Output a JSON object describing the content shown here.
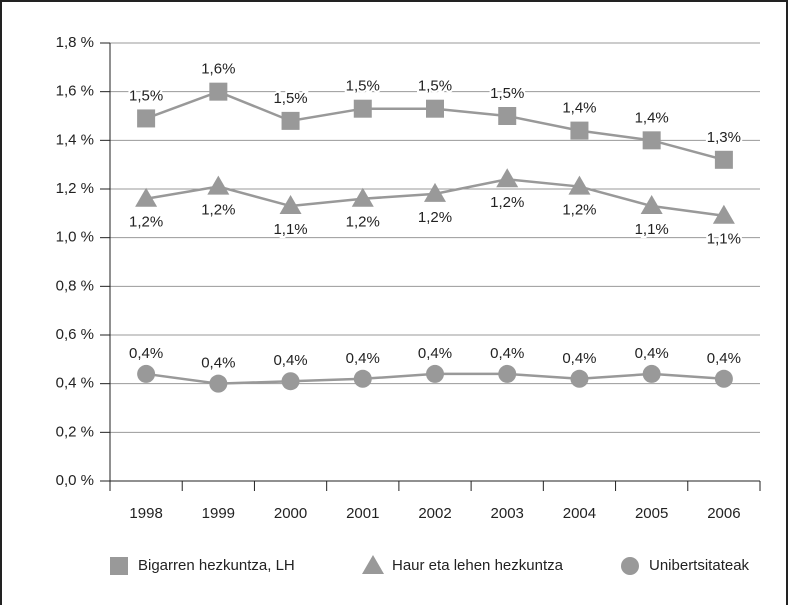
{
  "chart_data": {
    "type": "line",
    "categories": [
      "1998",
      "1999",
      "2000",
      "2001",
      "2002",
      "2003",
      "2004",
      "2005",
      "2006"
    ],
    "ylim": [
      0,
      1.8
    ],
    "yticks": [
      {
        "value": 0,
        "label": "0,0 %"
      },
      {
        "value": 0.2,
        "label": "0,2 %"
      },
      {
        "value": 0.4,
        "label": "0,4 %"
      },
      {
        "value": 0.6,
        "label": "0,6 %"
      },
      {
        "value": 0.8,
        "label": "0,8 %"
      },
      {
        "value": 1.0,
        "label": "1,0 %"
      },
      {
        "value": 1.2,
        "label": "1,2 %"
      },
      {
        "value": 1.4,
        "label": "1,4 %"
      },
      {
        "value": 1.6,
        "label": "1,6 %"
      },
      {
        "value": 1.8,
        "label": "1,8 %"
      }
    ],
    "grid": true,
    "legend": "bottom",
    "series": [
      {
        "name": "Bigarren hezkuntza, LH",
        "color": "#999999",
        "marker": "square",
        "values": [
          1.49,
          1.6,
          1.48,
          1.53,
          1.53,
          1.5,
          1.44,
          1.4,
          1.32
        ],
        "value_labels": [
          "1,5%",
          "1,6%",
          "1,5%",
          "1,5%",
          "1,5%",
          "1,5%",
          "1,4%",
          "1,4%",
          "1,3%"
        ]
      },
      {
        "name": "Haur eta lehen hezkuntza",
        "color": "#999999",
        "marker": "triangle",
        "values": [
          1.16,
          1.21,
          1.13,
          1.16,
          1.18,
          1.24,
          1.21,
          1.13,
          1.09
        ],
        "value_labels": [
          "1,2%",
          "1,2%",
          "1,1%",
          "1,2%",
          "1,2%",
          "1,2%",
          "1,2%",
          "1,1%",
          "1,1%"
        ]
      },
      {
        "name": "Unibertsitateak",
        "color": "#999999",
        "marker": "circle",
        "values": [
          0.44,
          0.4,
          0.41,
          0.42,
          0.44,
          0.44,
          0.42,
          0.44,
          0.42
        ],
        "value_labels": [
          "0,4%",
          "0,4%",
          "0,4%",
          "0,4%",
          "0,4%",
          "0,4%",
          "0,4%",
          "0,4%",
          "0,4%"
        ]
      }
    ]
  }
}
